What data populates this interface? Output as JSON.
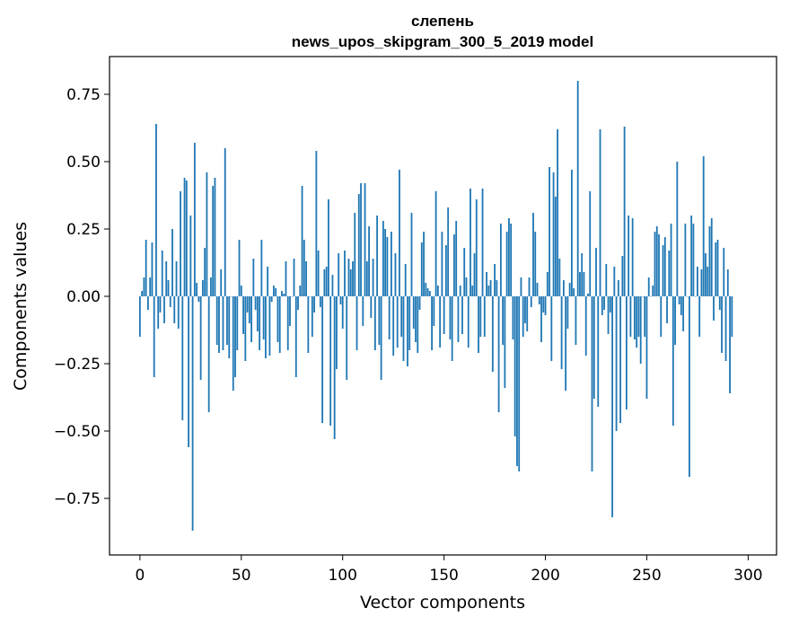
{
  "chart_data": {
    "type": "bar",
    "title": "слепень",
    "subtitle": "news_upos_skipgram_300_5_2019 model",
    "xlabel": "Vector components",
    "ylabel": "Components values",
    "xlim": [
      -15,
      314
    ],
    "ylim": [
      -0.96,
      0.89
    ],
    "xticks": [
      0,
      50,
      100,
      150,
      200,
      250,
      300
    ],
    "xtick_labels": [
      "0",
      "50",
      "100",
      "150",
      "200",
      "250",
      "300"
    ],
    "yticks": [
      0.75,
      0.5,
      0.25,
      0.0,
      -0.25,
      -0.5,
      -0.75
    ],
    "ytick_labels": [
      "0.75",
      "0.50",
      "0.25",
      "0.00",
      "−0.25",
      "−0.50",
      "−0.75"
    ],
    "bar_color": "#1f77b4",
    "values": [
      -0.15,
      0.02,
      0.07,
      0.21,
      -0.05,
      0.07,
      0.2,
      -0.3,
      0.64,
      -0.12,
      -0.06,
      0.17,
      -0.1,
      0.13,
      0.06,
      -0.04,
      0.25,
      -0.1,
      0.13,
      -0.12,
      0.39,
      -0.46,
      0.44,
      0.43,
      -0.56,
      0.3,
      -0.87,
      0.57,
      0.05,
      -0.02,
      -0.31,
      0.06,
      0.18,
      0.46,
      -0.43,
      0.07,
      0.41,
      0.44,
      -0.18,
      -0.21,
      0.1,
      -0.2,
      0.55,
      -0.18,
      -0.23,
      0.0,
      -0.35,
      -0.3,
      -0.2,
      0.21,
      0.04,
      -0.14,
      -0.24,
      -0.06,
      -0.1,
      -0.17,
      0.14,
      -0.05,
      -0.13,
      -0.2,
      0.21,
      -0.16,
      -0.23,
      0.11,
      -0.22,
      -0.02,
      0.04,
      0.03,
      -0.17,
      -0.21,
      0.02,
      0.01,
      0.13,
      -0.2,
      -0.11,
      0.0,
      0.14,
      -0.3,
      -0.05,
      0.04,
      0.41,
      0.21,
      0.13,
      -0.21,
      0.0,
      -0.15,
      -0.06,
      0.54,
      0.17,
      -0.04,
      -0.47,
      0.1,
      0.11,
      0.36,
      -0.48,
      0.08,
      -0.53,
      -0.27,
      0.16,
      -0.03,
      -0.12,
      0.17,
      -0.31,
      0.14,
      0.1,
      0.13,
      0.31,
      -0.2,
      0.38,
      0.42,
      -0.11,
      0.42,
      0.13,
      0.26,
      -0.08,
      0.14,
      -0.2,
      0.3,
      -0.18,
      -0.31,
      0.28,
      0.25,
      0.22,
      -0.16,
      0.24,
      -0.22,
      0.16,
      -0.19,
      0.47,
      -0.15,
      -0.24,
      0.12,
      -0.26,
      -0.2,
      0.31,
      -0.12,
      -0.17,
      -0.21,
      -0.05,
      0.2,
      0.24,
      0.05,
      0.03,
      0.02,
      -0.2,
      -0.11,
      0.39,
      0.04,
      -0.19,
      0.24,
      -0.14,
      0.19,
      0.33,
      -0.16,
      -0.24,
      0.23,
      0.28,
      -0.17,
      0.04,
      -0.14,
      0.18,
      0.07,
      -0.19,
      0.4,
      0.04,
      0.16,
      0.36,
      -0.21,
      -0.15,
      0.4,
      -0.15,
      0.09,
      0.04,
      0.06,
      -0.28,
      0.12,
      0.06,
      -0.43,
      0.27,
      -0.18,
      -0.34,
      0.24,
      0.29,
      0.27,
      -0.16,
      -0.52,
      -0.63,
      -0.65,
      0.07,
      -0.15,
      -0.1,
      -0.13,
      0.07,
      -0.04,
      0.31,
      0.24,
      0.05,
      -0.03,
      -0.17,
      -0.06,
      -0.07,
      0.09,
      0.48,
      -0.24,
      0.46,
      0.37,
      0.62,
      0.14,
      -0.27,
      0.06,
      -0.35,
      -0.12,
      0.05,
      0.47,
      0.03,
      -0.18,
      0.8,
      0.09,
      0.16,
      0.09,
      -0.22,
      0.01,
      0.39,
      -0.65,
      -0.38,
      0.18,
      -0.41,
      0.62,
      -0.07,
      -0.05,
      0.12,
      -0.14,
      -0.06,
      -0.82,
      0.11,
      -0.5,
      0.06,
      -0.47,
      0.15,
      0.63,
      -0.42,
      0.3,
      -0.15,
      0.29,
      -0.16,
      -0.19,
      -0.15,
      -0.25,
      0.0,
      -0.15,
      -0.38,
      0.07,
      0.0,
      0.04,
      0.24,
      0.26,
      0.23,
      -0.15,
      0.19,
      0.22,
      -0.1,
      0.17,
      0.27,
      -0.48,
      -0.18,
      0.5,
      -0.03,
      -0.07,
      -0.13,
      0.27,
      0.0,
      -0.67,
      0.3,
      0.27,
      0.0,
      0.11,
      -0.15,
      0.1,
      0.52,
      0.16,
      0.11,
      0.26,
      0.29,
      -0.09,
      0.2,
      0.21,
      -0.05,
      -0.21,
      0.18,
      -0.24,
      0.1,
      -0.36,
      -0.15
    ]
  }
}
